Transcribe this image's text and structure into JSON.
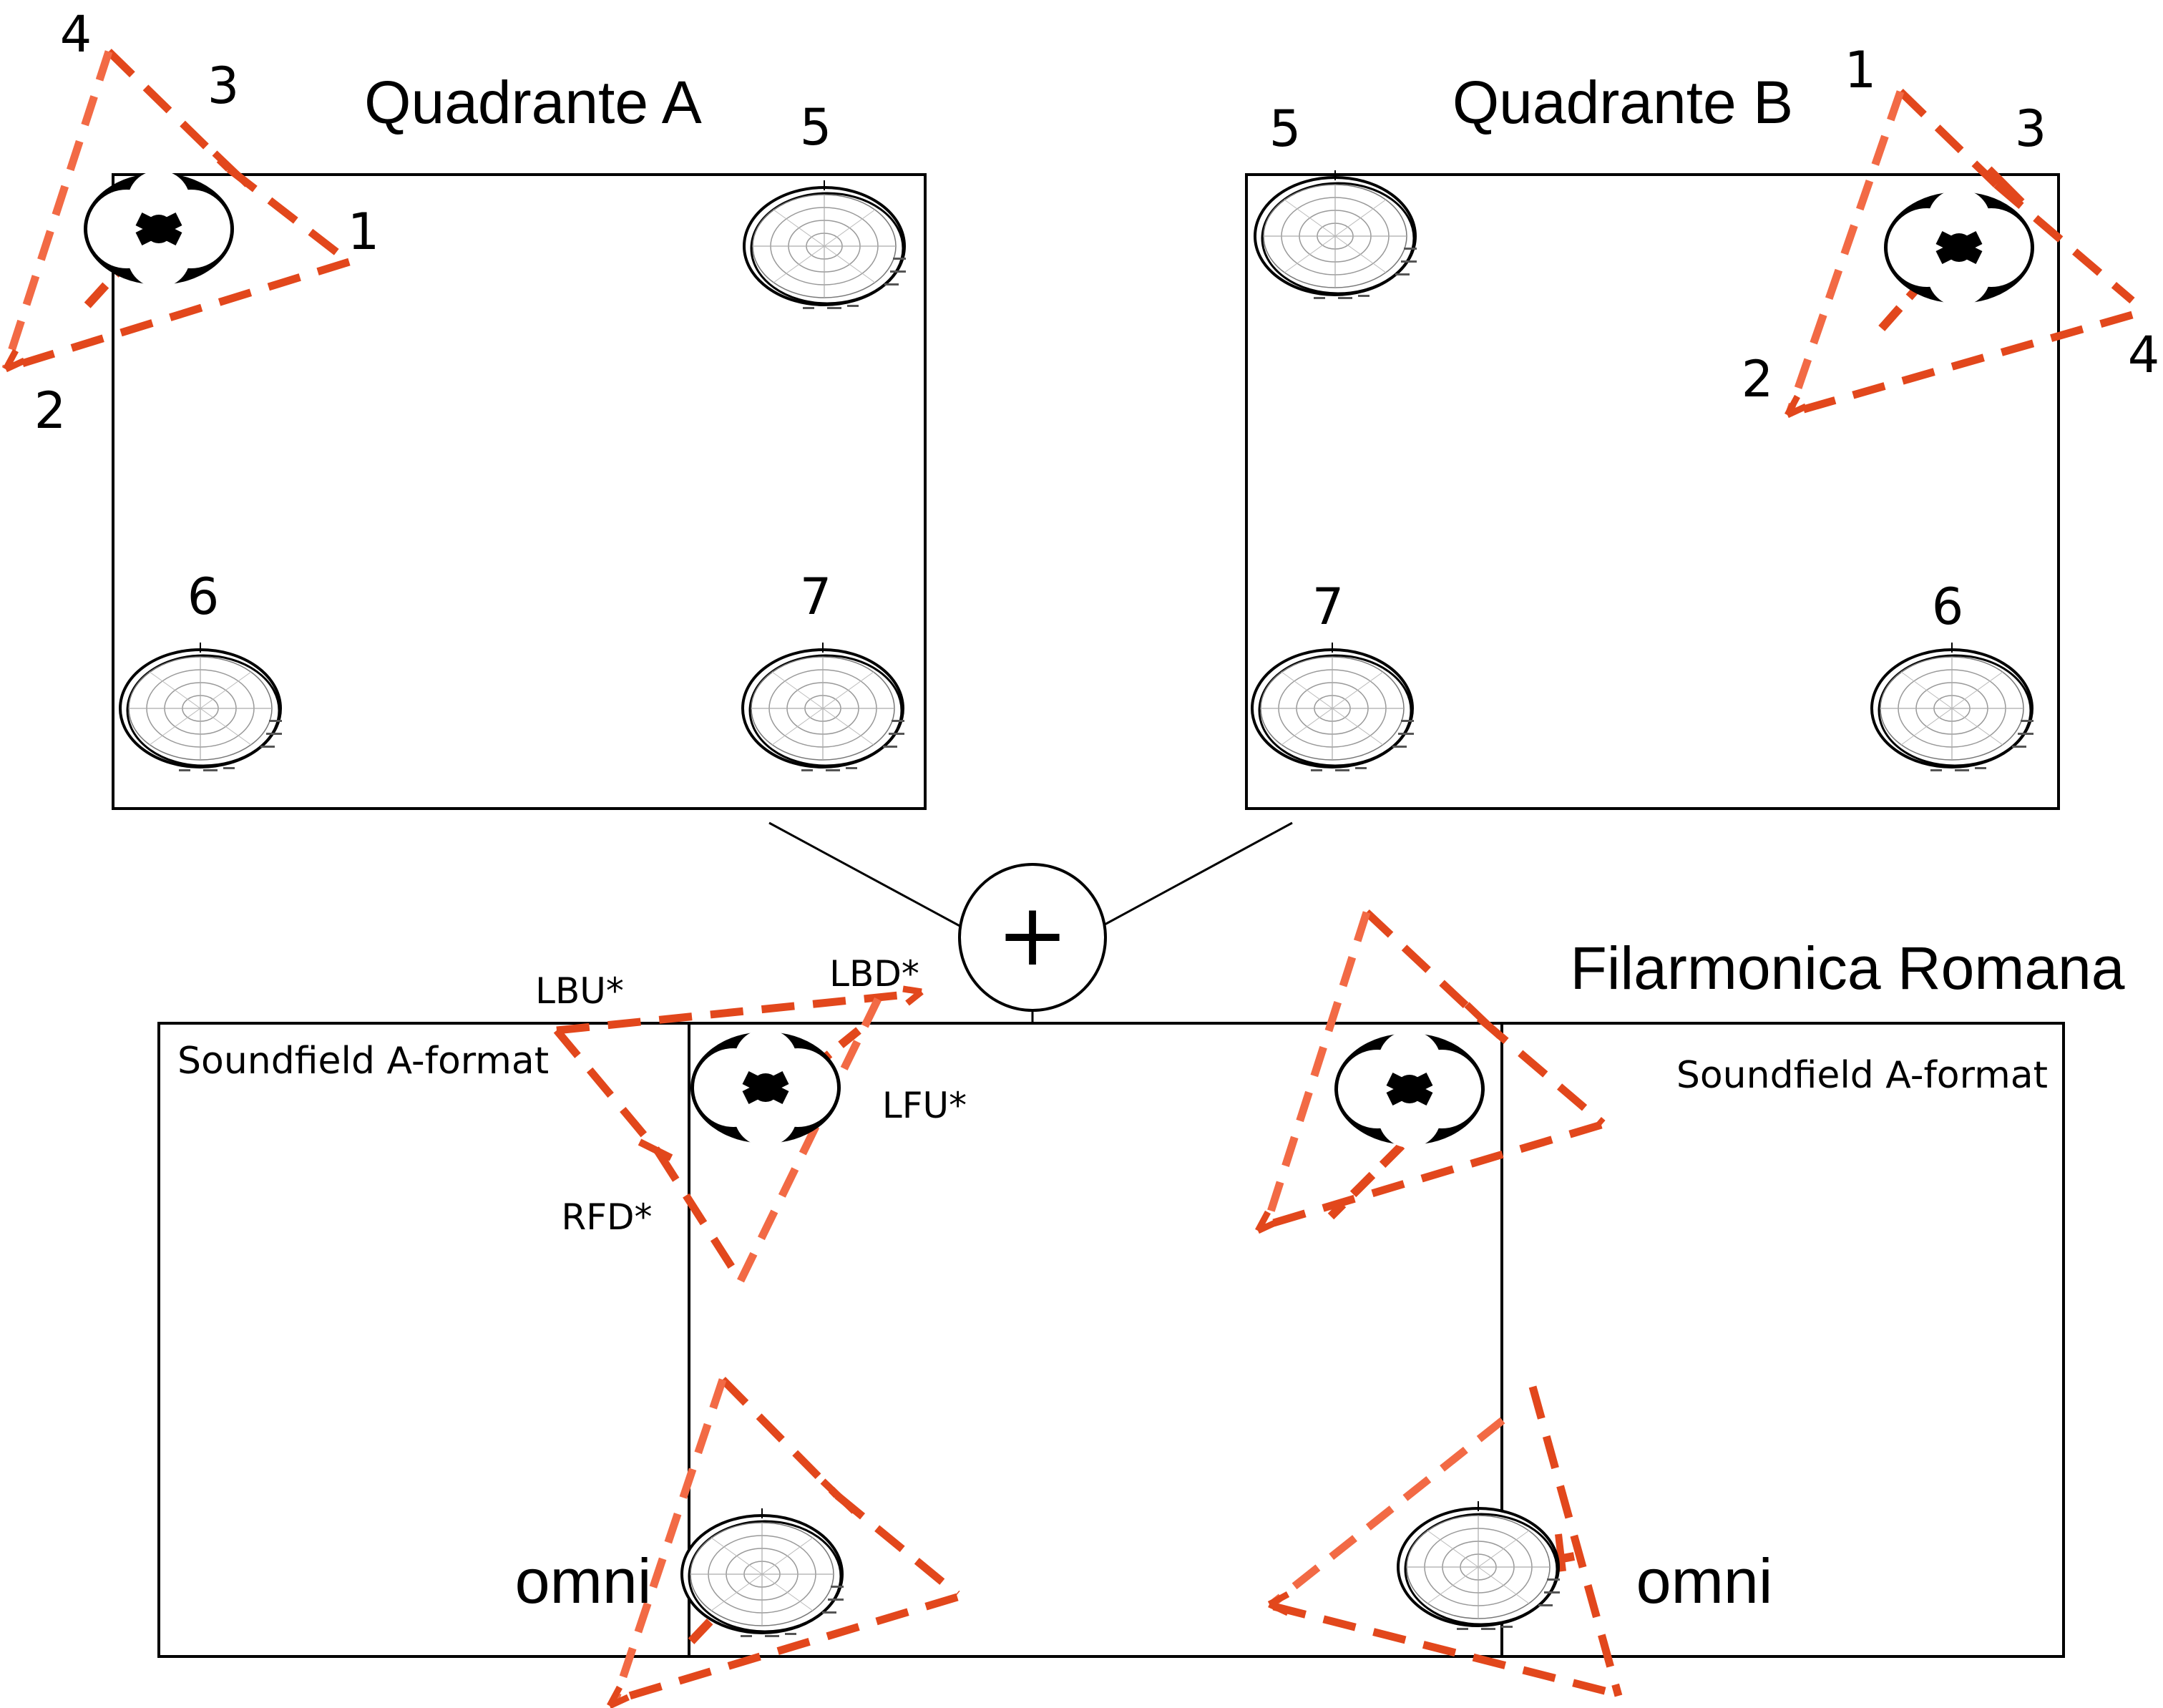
{
  "quadrant_a": {
    "title": "Quadrante A",
    "fig8_labels": [
      "4",
      "3",
      "1",
      "2"
    ],
    "omni_labels": [
      "5",
      "6",
      "7"
    ]
  },
  "quadrant_b": {
    "title": "Quadrante B",
    "fig8_labels": [
      "1",
      "3",
      "4",
      "2"
    ],
    "omni_labels": [
      "5",
      "7",
      "6"
    ]
  },
  "combine_symbol": "+",
  "hall": {
    "title": "Filarmonica Romana",
    "left_label": "Soundfield A-format",
    "right_label": "Soundfield A-format",
    "capsules": [
      "LBU*",
      "LBD*",
      "LFU*",
      "RFD*"
    ],
    "omni_left": "omni",
    "omni_right": "omni"
  },
  "colors": {
    "line": "#000000",
    "dash_dark": "#e2471c",
    "dash_light": "#f26a45"
  },
  "icons": {
    "figure_eight": "figure-eight-mic-pattern-icon",
    "omni": "omni-polar-pattern-icon"
  }
}
